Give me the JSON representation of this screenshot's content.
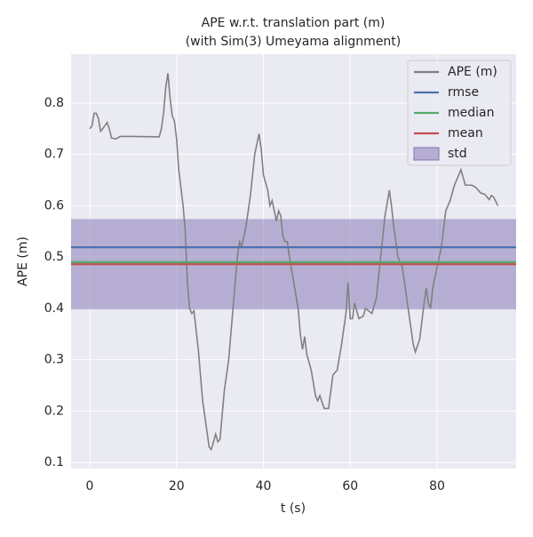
{
  "chart_data": {
    "type": "line",
    "title": [
      "APE w.r.t. translation part (m)",
      "(with Sim(3) Umeyama alignment)"
    ],
    "xlabel": "t (s)",
    "ylabel": "APE (m)",
    "x": [
      0,
      0.5,
      1,
      1.5,
      2,
      2.5,
      3,
      4,
      4.5,
      5,
      6,
      7,
      10,
      16,
      16.5,
      17,
      17.5,
      18,
      18.5,
      19,
      19.5,
      20,
      20.5,
      21.5,
      22,
      22.5,
      23,
      23.5,
      24,
      25,
      26,
      27,
      27.5,
      28,
      28.5,
      29,
      29.5,
      30,
      31,
      32,
      33,
      34,
      34.5,
      35,
      36,
      37,
      38,
      39,
      39.5,
      40,
      41,
      41.5,
      42,
      43,
      43.5,
      44,
      44.5,
      45,
      45.5,
      46,
      47,
      48,
      48.5,
      49,
      49.5,
      50,
      51,
      52,
      52.5,
      53,
      54,
      55,
      56,
      57,
      58,
      59,
      59.5,
      60,
      60.5,
      61,
      62,
      63,
      63.5,
      65,
      66,
      67,
      68,
      69,
      69.5,
      70,
      71,
      72,
      73,
      74,
      74.5,
      75,
      76,
      77,
      77.5,
      78,
      78.5,
      79,
      80,
      81,
      82,
      83,
      84,
      85,
      85.5,
      86,
      86.5,
      88,
      89,
      90,
      91,
      92,
      92.5,
      93,
      94
    ],
    "series": [
      {
        "name": "APE (m)",
        "color": "#808080",
        "values": [
          0.75,
          0.755,
          0.78,
          0.78,
          0.77,
          0.745,
          0.75,
          0.762,
          0.75,
          0.732,
          0.73,
          0.735,
          0.735,
          0.734,
          0.75,
          0.78,
          0.83,
          0.858,
          0.81,
          0.775,
          0.765,
          0.73,
          0.67,
          0.6,
          0.55,
          0.45,
          0.4,
          0.39,
          0.395,
          0.32,
          0.22,
          0.16,
          0.13,
          0.125,
          0.14,
          0.155,
          0.14,
          0.145,
          0.24,
          0.3,
          0.4,
          0.5,
          0.53,
          0.52,
          0.56,
          0.62,
          0.7,
          0.74,
          0.71,
          0.66,
          0.63,
          0.6,
          0.61,
          0.57,
          0.59,
          0.58,
          0.54,
          0.53,
          0.53,
          0.5,
          0.45,
          0.4,
          0.35,
          0.32,
          0.345,
          0.31,
          0.28,
          0.23,
          0.22,
          0.23,
          0.205,
          0.205,
          0.27,
          0.28,
          0.33,
          0.39,
          0.45,
          0.38,
          0.38,
          0.41,
          0.38,
          0.385,
          0.4,
          0.39,
          0.42,
          0.5,
          0.58,
          0.63,
          0.6,
          0.56,
          0.5,
          0.48,
          0.42,
          0.36,
          0.33,
          0.315,
          0.34,
          0.41,
          0.44,
          0.41,
          0.4,
          0.44,
          0.48,
          0.52,
          0.59,
          0.61,
          0.64,
          0.66,
          0.67,
          0.655,
          0.64,
          0.64,
          0.635,
          0.625,
          0.622,
          0.612,
          0.62,
          0.617,
          0.6
        ]
      }
    ],
    "stats": [
      {
        "name": "rmse",
        "color": "#4c72b0",
        "value": 0.519
      },
      {
        "name": "median",
        "color": "#55a868",
        "value": 0.49
      },
      {
        "name": "mean",
        "color": "#c44e52",
        "value": 0.486
      }
    ],
    "std": {
      "name": "std",
      "color": "#8172b2",
      "value": 0.088
    },
    "xlim": [
      -4.3,
      98.2
    ],
    "ylim": [
      0.088,
      0.895
    ],
    "xticks": [
      0,
      20,
      40,
      60,
      80
    ],
    "yticks": [
      0.1,
      0.2,
      0.3,
      0.4,
      0.5,
      0.6,
      0.7,
      0.8
    ],
    "grid": true,
    "legend": "upper right"
  }
}
